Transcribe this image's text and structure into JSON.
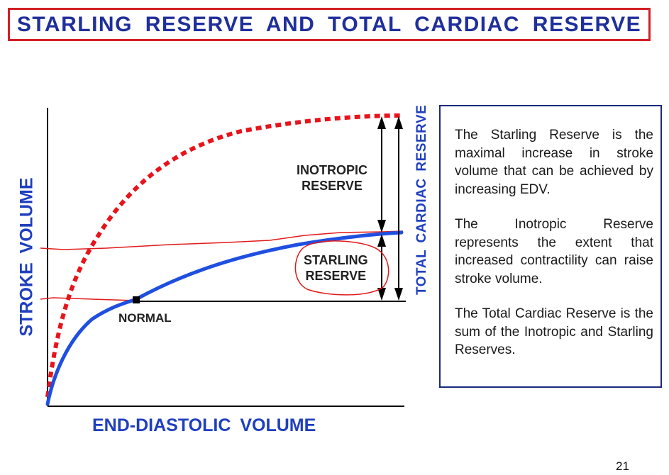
{
  "slide": {
    "title": "STARLING RESERVE AND TOTAL CARDIAC RESERVE",
    "page_number": "21"
  },
  "diagram": {
    "y_axis_label": "STROKE VOLUME",
    "x_axis_label": "END-DIASTOLIC VOLUME",
    "point_label": "NORMAL",
    "inotropic_label_line1": "INOTROPIC",
    "inotropic_label_line2": "RESERVE",
    "starling_label_line1": "STARLING",
    "starling_label_line2": "RESERVE",
    "total_label": "TOTAL CARDIAC RESERVE",
    "colors": {
      "title_border": "#d21f26",
      "title_text": "#1f2f9b",
      "blue_curve": "#1f4fe0",
      "red_curve": "#e8131b",
      "annotation_red": "#e01a1a",
      "axis_label_blue": "#1f3fbf"
    }
  },
  "panel": {
    "paragraph1": "The Starling Reserve is the maximal increase in stroke volume that can be achieved by increasing EDV.",
    "paragraph2": "The Inotropic Reserve represents the extent that increased contractility can raise stroke volume.",
    "paragraph3": "The Total Cardiac Reserve is the sum of the Inotropic and Starling Reserves."
  }
}
